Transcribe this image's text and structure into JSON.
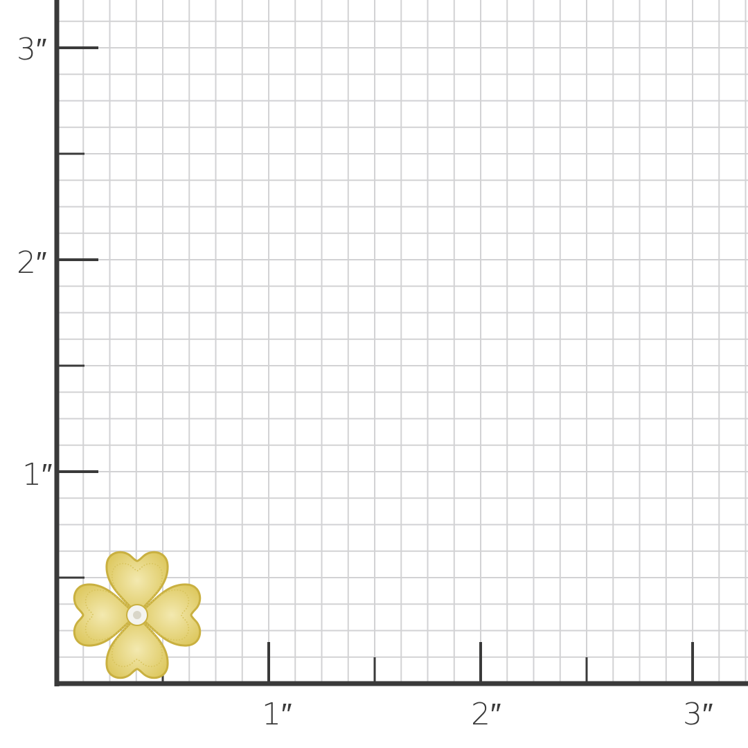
{
  "ruler": {
    "unit_labels_y": [
      "1″",
      "2″",
      "3″"
    ],
    "unit_labels_x": [
      "1″",
      "2″",
      "3″"
    ],
    "grid_subdivisions_per_inch": 8,
    "axis_color": "#3a3a3a",
    "grid_color": "#d2d2d4"
  },
  "product": {
    "description_icon": "four-leaf-clover-earring-icon",
    "metal_color": "#e6d57a",
    "stone_color": "#f4f4f0"
  }
}
